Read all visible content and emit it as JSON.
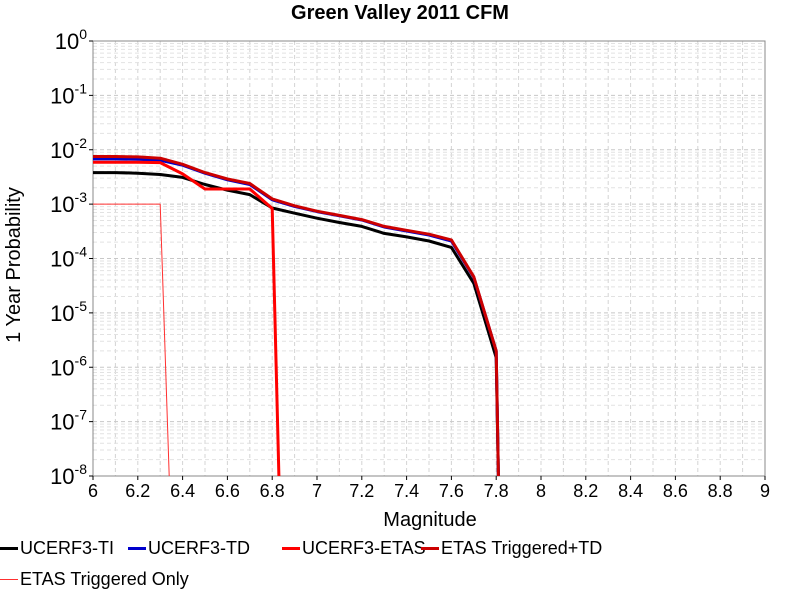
{
  "chart_data": {
    "type": "line",
    "title": "Green Valley 2011 CFM",
    "xlabel": "Magnitude",
    "ylabel": "1 Year Probability",
    "xlim": [
      6,
      9
    ],
    "ylim": [
      1e-08,
      1
    ],
    "yscale": "log",
    "grid": true,
    "legend_position": "bottom",
    "x_ticks": [
      "6",
      "6.2",
      "6.4",
      "6.6",
      "6.8",
      "7",
      "7.2",
      "7.4",
      "7.6",
      "7.8",
      "8",
      "8.2",
      "8.4",
      "8.6",
      "8.8",
      "9"
    ],
    "y_ticks": [
      {
        "base": "10",
        "exp": "0"
      },
      {
        "base": "10",
        "exp": "-1"
      },
      {
        "base": "10",
        "exp": "-2"
      },
      {
        "base": "10",
        "exp": "-3"
      },
      {
        "base": "10",
        "exp": "-4"
      },
      {
        "base": "10",
        "exp": "-5"
      },
      {
        "base": "10",
        "exp": "-6"
      },
      {
        "base": "10",
        "exp": "-7"
      },
      {
        "base": "10",
        "exp": "-8"
      }
    ],
    "series": [
      {
        "name": "UCERF3-TI",
        "color": "#000000",
        "width": 3,
        "points": [
          [
            6.0,
            0.0038
          ],
          [
            6.1,
            0.0038
          ],
          [
            6.2,
            0.0037
          ],
          [
            6.3,
            0.0035
          ],
          [
            6.4,
            0.0031
          ],
          [
            6.5,
            0.0023
          ],
          [
            6.6,
            0.0018
          ],
          [
            6.7,
            0.0015
          ],
          [
            6.8,
            0.00085
          ],
          [
            6.9,
            0.00068
          ],
          [
            7.0,
            0.00055
          ],
          [
            7.1,
            0.00046
          ],
          [
            7.2,
            0.00039
          ],
          [
            7.3,
            0.00029
          ],
          [
            7.4,
            0.00025
          ],
          [
            7.5,
            0.00021
          ],
          [
            7.6,
            0.00016
          ],
          [
            7.7,
            3.5e-05
          ],
          [
            7.8,
            1.5e-06
          ],
          [
            7.81,
            1e-08
          ]
        ]
      },
      {
        "name": "UCERF3-TD",
        "color": "#0000cc",
        "width": 3,
        "points": [
          [
            6.0,
            0.0068
          ],
          [
            6.1,
            0.0068
          ],
          [
            6.2,
            0.0067
          ],
          [
            6.3,
            0.0064
          ],
          [
            6.4,
            0.0052
          ],
          [
            6.5,
            0.0037
          ],
          [
            6.6,
            0.0028
          ],
          [
            6.7,
            0.0023
          ],
          [
            6.8,
            0.0012
          ],
          [
            6.9,
            0.00091
          ],
          [
            7.0,
            0.00073
          ],
          [
            7.1,
            0.00061
          ],
          [
            7.2,
            0.00051
          ],
          [
            7.3,
            0.00038
          ],
          [
            7.4,
            0.00032
          ],
          [
            7.5,
            0.00027
          ],
          [
            7.6,
            0.00021
          ],
          [
            7.7,
            4.5e-05
          ],
          [
            7.8,
            2e-06
          ],
          [
            7.81,
            1e-08
          ]
        ]
      },
      {
        "name": "UCERF3-ETAS",
        "color": "#ff0000",
        "width": 3,
        "points": [
          [
            6.0,
            0.0059
          ],
          [
            6.1,
            0.0059
          ],
          [
            6.2,
            0.0059
          ],
          [
            6.3,
            0.0058
          ],
          [
            6.4,
            0.0036
          ],
          [
            6.5,
            0.0019
          ],
          [
            6.6,
            0.0019
          ],
          [
            6.7,
            0.0019
          ],
          [
            6.8,
            0.00083
          ],
          [
            6.83,
            1e-08
          ]
        ]
      },
      {
        "name": "ETAS Triggered+TD",
        "color": "#cc0000",
        "width": 3,
        "points": [
          [
            6.0,
            0.0075
          ],
          [
            6.1,
            0.0075
          ],
          [
            6.2,
            0.0074
          ],
          [
            6.3,
            0.007
          ],
          [
            6.4,
            0.0054
          ],
          [
            6.5,
            0.0038
          ],
          [
            6.6,
            0.0029
          ],
          [
            6.7,
            0.0024
          ],
          [
            6.8,
            0.00125
          ],
          [
            6.9,
            0.00093
          ],
          [
            7.0,
            0.00074
          ],
          [
            7.1,
            0.00062
          ],
          [
            7.2,
            0.00052
          ],
          [
            7.3,
            0.00039
          ],
          [
            7.4,
            0.00033
          ],
          [
            7.5,
            0.00028
          ],
          [
            7.6,
            0.00022
          ],
          [
            7.7,
            4.6e-05
          ],
          [
            7.8,
            2e-06
          ],
          [
            7.81,
            1e-08
          ]
        ]
      },
      {
        "name": "ETAS Triggered Only",
        "color": "#ff3030",
        "width": 1,
        "points": [
          [
            6.0,
            0.001
          ],
          [
            6.3,
            0.001
          ],
          [
            6.34,
            1e-08
          ]
        ]
      }
    ]
  }
}
